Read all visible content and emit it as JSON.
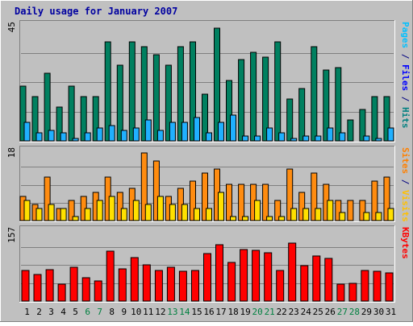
{
  "chart_data": {
    "type": "bar",
    "title": "Daily usage for January 2007",
    "categories": [
      "1",
      "2",
      "3",
      "4",
      "5",
      "6",
      "7",
      "8",
      "9",
      "10",
      "11",
      "12",
      "13",
      "14",
      "15",
      "16",
      "17",
      "18",
      "19",
      "20",
      "21",
      "22",
      "23",
      "24",
      "25",
      "26",
      "27",
      "28",
      "29",
      "30",
      "31"
    ],
    "weekend_days": [
      "6",
      "7",
      "13",
      "14",
      "20",
      "21",
      "27",
      "28"
    ],
    "panels": [
      {
        "id": "hits-panel",
        "ymax_label": "45",
        "ylim": [
          0,
          45
        ],
        "right_label": [
          {
            "text": "Pages",
            "color": "#00c0ff"
          },
          {
            "text": " / ",
            "color": "#000080"
          },
          {
            "text": "Files",
            "color": "#0000ff"
          },
          {
            "text": " / ",
            "color": "#000080"
          },
          {
            "text": "Hits",
            "color": "#008080"
          }
        ],
        "series": [
          {
            "name": "Hits",
            "color": "#008060",
            "values": [
              21,
              17,
              26,
              13,
              21,
              17,
              17,
              38,
              29,
              38,
              36,
              33,
              29,
              36,
              38,
              18,
              43,
              23,
              31,
              34,
              32,
              38,
              16,
              20,
              36,
              27,
              28,
              8,
              12,
              17,
              17
            ]
          },
          {
            "name": "Files",
            "color": "#20b0ff",
            "values": [
              7,
              3,
              4,
              3,
              1,
              3,
              5,
              6,
              4,
              5,
              8,
              4,
              7,
              7,
              9,
              3,
              7,
              10,
              2,
              2,
              5,
              3,
              1,
              2,
              2,
              5,
              3,
              0,
              2,
              1,
              5
            ]
          }
        ]
      },
      {
        "id": "visits-panel",
        "ymax_label": "18",
        "ylim": [
          0,
          18
        ],
        "right_label": [
          {
            "text": "Sites",
            "color": "#ff8000"
          },
          {
            "text": " / ",
            "color": "#000080"
          },
          {
            "text": "Visits",
            "color": "#ffc000"
          }
        ],
        "series": [
          {
            "name": "Visits",
            "color": "#ff8c10",
            "values": [
              6,
              4,
              11,
              3,
              5,
              6,
              7,
              11,
              7,
              8,
              17,
              15,
              6,
              8,
              10,
              12,
              13,
              9,
              9,
              9,
              9,
              5,
              13,
              7,
              12,
              9,
              5,
              5,
              5,
              10,
              11
            ]
          },
          {
            "name": "Sites",
            "color": "#ffe000",
            "values": [
              5,
              3,
              4,
              3,
              1,
              3,
              5,
              6,
              3,
              5,
              4,
              6,
              4,
              4,
              3,
              3,
              7,
              1,
              1,
              5,
              1,
              1,
              3,
              3,
              3,
              5,
              2,
              0,
              2,
              2,
              3
            ]
          }
        ]
      },
      {
        "id": "kbytes-panel",
        "ymax_label": "157",
        "ylim": [
          0,
          157
        ],
        "right_label": [
          {
            "text": "KBytes",
            "color": "#ff0000"
          }
        ],
        "series": [
          {
            "name": "KBytes",
            "color": "#ff0000",
            "values": [
              66,
              58,
              68,
              36,
              73,
              50,
              43,
              108,
              70,
              95,
              79,
              66,
              73,
              64,
              67,
              103,
              122,
              84,
              112,
              110,
              105,
              67,
              126,
              77,
              98,
              92,
              37,
              38,
              67,
              64,
              61
            ]
          }
        ]
      }
    ]
  }
}
